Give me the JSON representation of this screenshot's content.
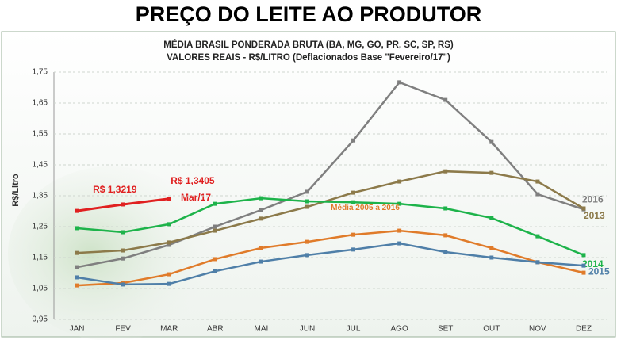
{
  "chart_data": {
    "type": "line",
    "title": "PREÇO DO LEITE AO PRODUTOR",
    "subtitle": [
      "MÉDIA BRASIL PONDERADA BRUTA (BA, MG, GO, PR, SC, SP, RS)",
      "VALORES REAIS - R$/LITRO (Deflacionados  Base \"Fevereiro/17\")"
    ],
    "y_label": "R$/Litro",
    "annotation": "Mar/17",
    "categories": [
      "JAN",
      "FEV",
      "MAR",
      "ABR",
      "MAI",
      "JUN",
      "JUL",
      "AGO",
      "SET",
      "OUT",
      "NOV",
      "DEZ"
    ],
    "ylim": [
      0.95,
      1.75
    ],
    "yticks": [
      {
        "value": 0.95,
        "label": "0,95"
      },
      {
        "value": 1.05,
        "label": "1,05"
      },
      {
        "value": 1.15,
        "label": "1,15"
      },
      {
        "value": 1.25,
        "label": "1,25"
      },
      {
        "value": 1.35,
        "label": "1,35"
      },
      {
        "value": 1.45,
        "label": "1,45"
      },
      {
        "value": 1.55,
        "label": "1,55"
      },
      {
        "value": 1.65,
        "label": "1,65"
      },
      {
        "value": 1.75,
        "label": "1,75"
      }
    ],
    "grid": true,
    "series": [
      {
        "name": "2016",
        "color": "#7f7f7f",
        "values": [
          1.119,
          1.147,
          1.191,
          1.25,
          1.304,
          1.363,
          1.529,
          1.717,
          1.66,
          1.524,
          1.355,
          1.306
        ]
      },
      {
        "name": "2013",
        "color": "#8c7a4a",
        "values": [
          1.165,
          1.173,
          1.199,
          1.237,
          1.276,
          1.314,
          1.36,
          1.396,
          1.429,
          1.424,
          1.396,
          1.309
        ]
      },
      {
        "name": "2014",
        "color": "#1db34a",
        "values": [
          1.245,
          1.232,
          1.258,
          1.324,
          1.342,
          1.332,
          1.329,
          1.324,
          1.309,
          1.278,
          1.219,
          1.158
        ]
      },
      {
        "name": "Média 2005 a 2016",
        "color": "#e07b2a",
        "values": [
          1.06,
          1.068,
          1.096,
          1.145,
          1.181,
          1.201,
          1.224,
          1.237,
          1.222,
          1.181,
          1.135,
          1.101
        ]
      },
      {
        "name": "2015",
        "color": "#4f7fa8",
        "values": [
          1.086,
          1.063,
          1.065,
          1.106,
          1.137,
          1.158,
          1.176,
          1.196,
          1.168,
          1.15,
          1.135,
          1.124
        ]
      },
      {
        "color": "#e02020",
        "values": [
          1.301,
          1.3219,
          1.3405,
          null,
          null,
          null,
          null,
          null,
          null,
          null,
          null,
          null
        ],
        "value_labels": [
          null,
          "R$ 1,3219",
          "R$ 1,3405",
          null,
          null,
          null,
          null,
          null,
          null,
          null,
          null,
          null
        ]
      }
    ]
  }
}
